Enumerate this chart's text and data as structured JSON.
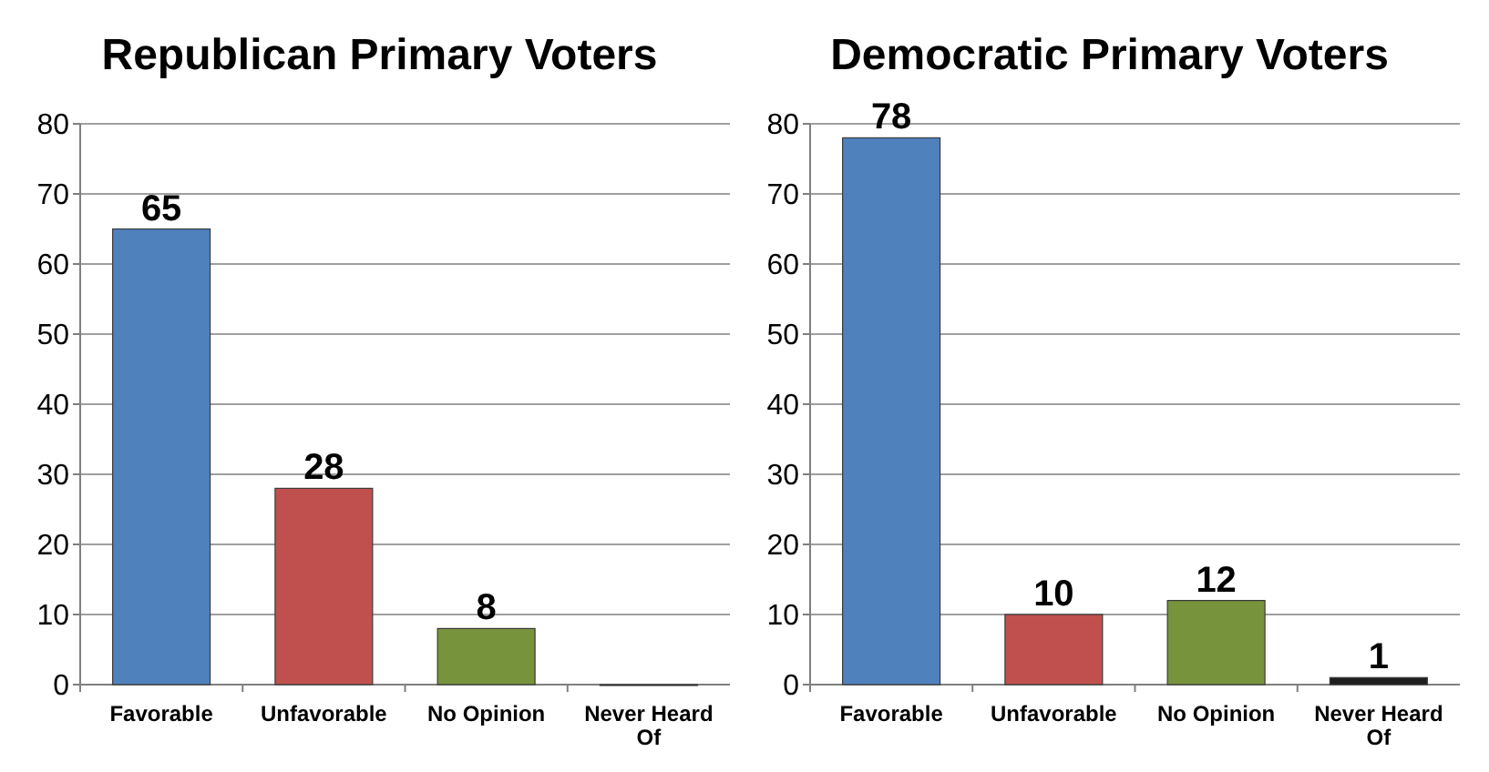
{
  "chart_data": [
    {
      "type": "bar",
      "title": "Republican Primary Voters",
      "categories": [
        "Favorable",
        "Unfavorable",
        "No Opinion",
        "Never Heard Of"
      ],
      "values": [
        65,
        28,
        8,
        0
      ],
      "colors": [
        "#4f81bd",
        "#c0504d",
        "#77933c",
        "#1f1f1f"
      ],
      "value_labels": [
        "65",
        "28",
        "8",
        null
      ],
      "ylim": [
        0,
        80
      ],
      "yticks": [
        0,
        10,
        20,
        30,
        40,
        50,
        60,
        70,
        80
      ],
      "grid": "y"
    },
    {
      "type": "bar",
      "title": "Democratic Primary Voters",
      "categories": [
        "Favorable",
        "Unfavorable",
        "No Opinion",
        "Never Heard Of"
      ],
      "values": [
        78,
        10,
        12,
        1
      ],
      "colors": [
        "#4f81bd",
        "#c0504d",
        "#77933c",
        "#1f1f1f"
      ],
      "data_labels": true,
      "ylim": [
        0,
        80
      ],
      "yticks": [
        0,
        10,
        20,
        30,
        40,
        50,
        60,
        70,
        80
      ],
      "grid": "y"
    }
  ]
}
